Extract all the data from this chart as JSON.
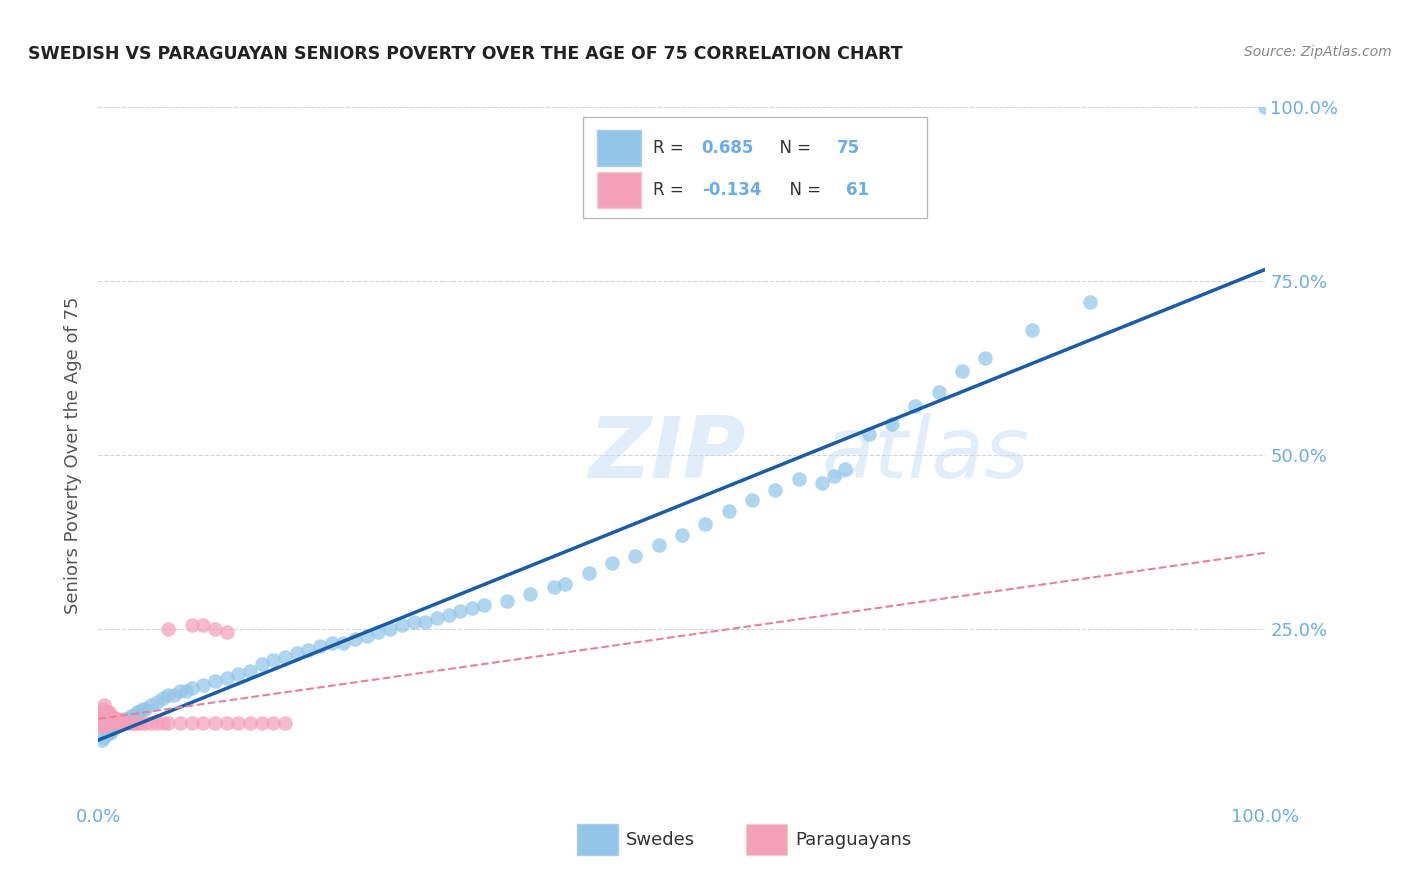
{
  "title": "SWEDISH VS PARAGUAYAN SENIORS POVERTY OVER THE AGE OF 75 CORRELATION CHART",
  "source": "Source: ZipAtlas.com",
  "ylabel": "Seniors Poverty Over the Age of 75",
  "xlim": [
    0,
    1
  ],
  "ylim": [
    0,
    1
  ],
  "xticks": [
    0.0,
    1.0
  ],
  "yticks": [
    0.25,
    0.5,
    0.75,
    1.0
  ],
  "xticklabels": [
    "0.0%",
    "100.0%"
  ],
  "yticklabels": [
    "25.0%",
    "50.0%",
    "75.0%",
    "100.0%"
  ],
  "blue_color": "#92c5e8",
  "pink_color": "#f4a0b8",
  "blue_line_color": "#1a5da6",
  "pink_line_color": "#e8819a",
  "watermark_zip": "ZIP",
  "watermark_atlas": "atlas",
  "background_color": "#ffffff",
  "grid_color": "#d0d0d0",
  "title_color": "#222222",
  "tick_color": "#6aade8",
  "blue_R": "0.685",
  "blue_N": "75",
  "pink_R": "-0.134",
  "pink_N": "61",
  "swedes_label": "Swedes",
  "paraguayans_label": "Paraguayans",
  "blue_scatter_x": [
    0.003,
    0.005,
    0.008,
    0.01,
    0.012,
    0.015,
    0.018,
    0.02,
    0.022,
    0.025,
    0.028,
    0.03,
    0.033,
    0.035,
    0.038,
    0.04,
    0.045,
    0.05,
    0.055,
    0.06,
    0.065,
    0.07,
    0.075,
    0.08,
    0.09,
    0.1,
    0.11,
    0.12,
    0.13,
    0.14,
    0.15,
    0.16,
    0.17,
    0.18,
    0.19,
    0.2,
    0.21,
    0.22,
    0.23,
    0.24,
    0.25,
    0.26,
    0.27,
    0.28,
    0.29,
    0.3,
    0.31,
    0.32,
    0.33,
    0.35,
    0.37,
    0.39,
    0.4,
    0.42,
    0.44,
    0.46,
    0.48,
    0.5,
    0.52,
    0.54,
    0.56,
    0.58,
    0.6,
    0.62,
    0.63,
    0.64,
    0.66,
    0.68,
    0.7,
    0.72,
    0.74,
    0.76,
    0.8,
    0.85,
    1.0
  ],
  "blue_scatter_y": [
    0.09,
    0.095,
    0.1,
    0.1,
    0.105,
    0.11,
    0.115,
    0.115,
    0.12,
    0.12,
    0.125,
    0.125,
    0.13,
    0.13,
    0.135,
    0.135,
    0.14,
    0.145,
    0.15,
    0.155,
    0.155,
    0.16,
    0.16,
    0.165,
    0.17,
    0.175,
    0.18,
    0.185,
    0.19,
    0.2,
    0.205,
    0.21,
    0.215,
    0.22,
    0.225,
    0.23,
    0.23,
    0.235,
    0.24,
    0.245,
    0.25,
    0.255,
    0.26,
    0.26,
    0.265,
    0.27,
    0.275,
    0.28,
    0.285,
    0.29,
    0.3,
    0.31,
    0.315,
    0.33,
    0.345,
    0.355,
    0.37,
    0.385,
    0.4,
    0.42,
    0.435,
    0.45,
    0.465,
    0.46,
    0.47,
    0.48,
    0.53,
    0.545,
    0.57,
    0.59,
    0.62,
    0.64,
    0.68,
    0.72,
    1.0
  ],
  "pink_scatter_x": [
    0.001,
    0.001,
    0.002,
    0.002,
    0.002,
    0.003,
    0.003,
    0.003,
    0.004,
    0.004,
    0.004,
    0.005,
    0.005,
    0.005,
    0.005,
    0.006,
    0.006,
    0.007,
    0.007,
    0.008,
    0.008,
    0.009,
    0.009,
    0.01,
    0.01,
    0.011,
    0.012,
    0.013,
    0.014,
    0.015,
    0.016,
    0.017,
    0.018,
    0.019,
    0.02,
    0.022,
    0.025,
    0.028,
    0.03,
    0.033,
    0.036,
    0.04,
    0.045,
    0.05,
    0.055,
    0.06,
    0.07,
    0.08,
    0.09,
    0.1,
    0.11,
    0.12,
    0.13,
    0.14,
    0.15,
    0.16,
    0.06,
    0.08,
    0.09,
    0.1,
    0.11
  ],
  "pink_scatter_y": [
    0.11,
    0.12,
    0.115,
    0.125,
    0.13,
    0.11,
    0.12,
    0.13,
    0.115,
    0.125,
    0.135,
    0.11,
    0.12,
    0.13,
    0.14,
    0.115,
    0.125,
    0.12,
    0.13,
    0.115,
    0.125,
    0.12,
    0.13,
    0.115,
    0.125,
    0.12,
    0.125,
    0.12,
    0.115,
    0.12,
    0.115,
    0.12,
    0.115,
    0.115,
    0.115,
    0.115,
    0.115,
    0.115,
    0.115,
    0.115,
    0.115,
    0.115,
    0.115,
    0.115,
    0.115,
    0.115,
    0.115,
    0.115,
    0.115,
    0.115,
    0.115,
    0.115,
    0.115,
    0.115,
    0.115,
    0.115,
    0.25,
    0.255,
    0.255,
    0.25,
    0.245
  ]
}
